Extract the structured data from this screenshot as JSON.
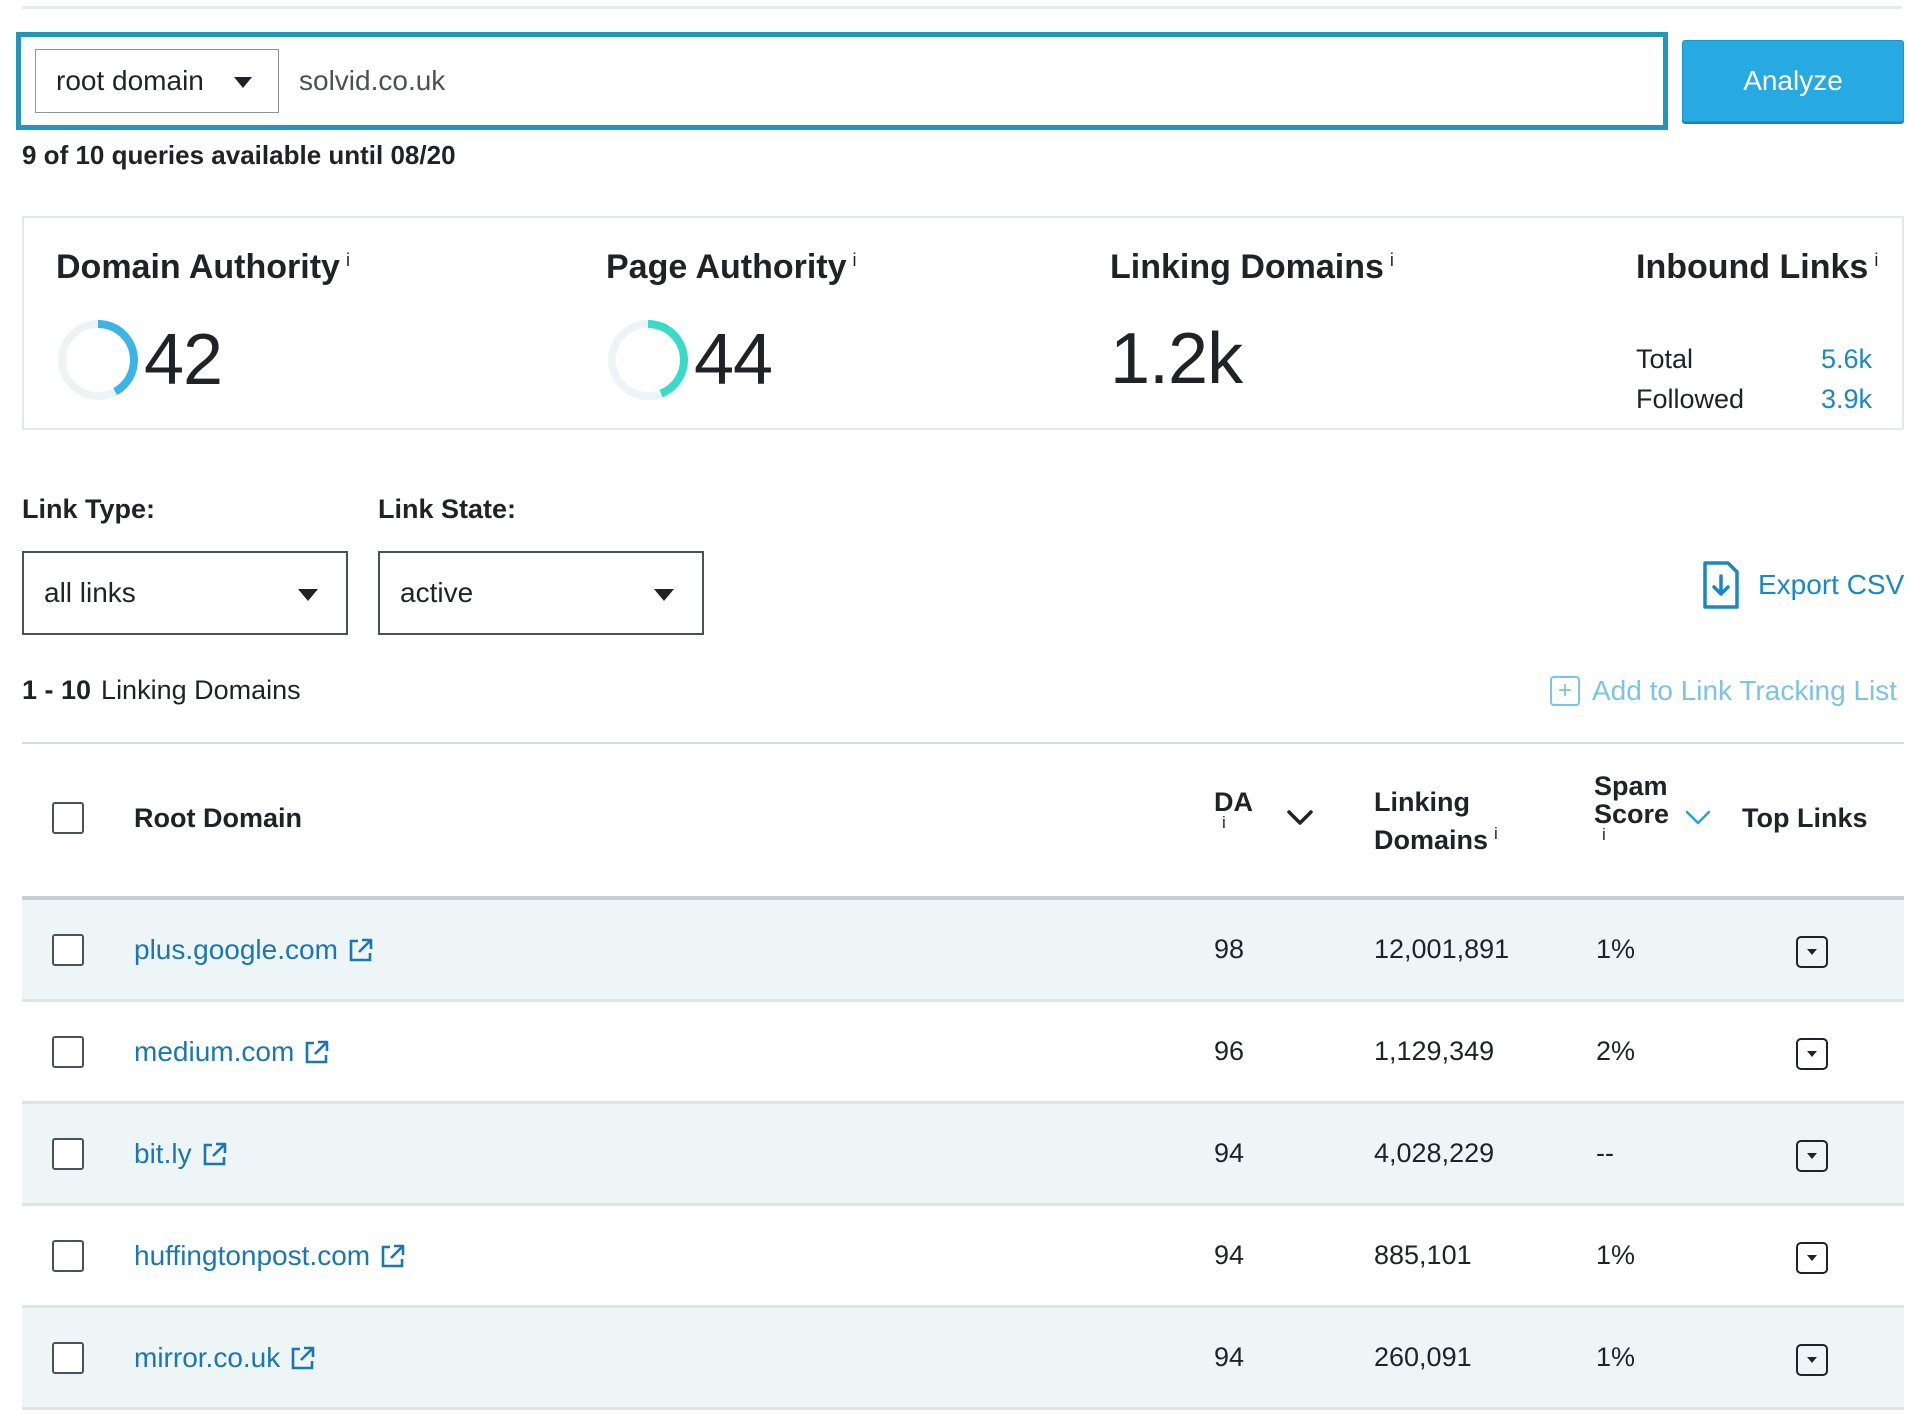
{
  "search": {
    "scope": "root domain",
    "query": "solvid.co.uk",
    "analyze_label": "Analyze",
    "quota": "9 of 10 queries available until 08/20"
  },
  "metrics": {
    "domain_authority": {
      "title": "Domain Authority",
      "value": "42",
      "gauge_fraction": 0.42,
      "color": "#3cb4e7"
    },
    "page_authority": {
      "title": "Page Authority",
      "value": "44",
      "gauge_fraction": 0.44,
      "color": "#39dbc8"
    },
    "linking_domains": {
      "title": "Linking Domains",
      "value": "1.2k"
    },
    "inbound_links": {
      "title": "Inbound Links",
      "total_label": "Total",
      "total_value": "5.6k",
      "followed_label": "Followed",
      "followed_value": "3.9k"
    },
    "info_glyph": "i"
  },
  "filters": {
    "link_type_label": "Link Type:",
    "link_type_value": "all links",
    "link_state_label": "Link State:",
    "link_state_value": "active"
  },
  "export_label": "Export CSV",
  "results": {
    "range": "1 - 10",
    "range_label": "Linking Domains",
    "tracking_label": "Add to Link Tracking List"
  },
  "table": {
    "columns": {
      "root_domain": "Root Domain",
      "da": "DA",
      "linking_domains_1": "Linking",
      "linking_domains_2": "Domains",
      "spam_1": "Spam",
      "spam_2": "Score",
      "top_links": "Top Links"
    },
    "rows": [
      {
        "domain": "plus.google.com",
        "da": "98",
        "linking": "12,001,891",
        "spam": "1%"
      },
      {
        "domain": "medium.com",
        "da": "96",
        "linking": "1,129,349",
        "spam": "2%"
      },
      {
        "domain": "bit.ly",
        "da": "94",
        "linking": "4,028,229",
        "spam": "--"
      },
      {
        "domain": "huffingtonpost.com",
        "da": "94",
        "linking": "885,101",
        "spam": "1%"
      },
      {
        "domain": "mirror.co.uk",
        "da": "94",
        "linking": "260,091",
        "spam": "1%"
      }
    ]
  }
}
